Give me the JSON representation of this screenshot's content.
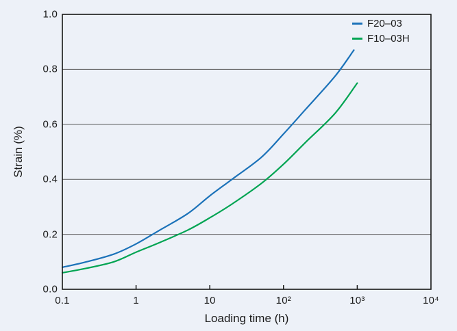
{
  "colors": {
    "background": "#edf1f8",
    "axis": "#161616",
    "gridline": "#555555",
    "text": "#1a1a1a",
    "series_blue": "#1b72b9",
    "series_green": "#00a452"
  },
  "chart_data": {
    "type": "line",
    "title": "",
    "xlabel": "Loading time (h)",
    "ylabel": "Strain (%)",
    "x_scale": "log",
    "xlim": [
      0.1,
      10000
    ],
    "ylim": [
      0.0,
      1.0
    ],
    "grid": "horizontal-only",
    "gridlines_y": [
      0.2,
      0.4,
      0.6,
      0.8
    ],
    "legend_position": "top-right-inside",
    "x_ticks": [
      {
        "v": 0.1,
        "label": "0.1"
      },
      {
        "v": 1,
        "label": "1"
      },
      {
        "v": 10,
        "label": "10"
      },
      {
        "v": 100,
        "label": "10²"
      },
      {
        "v": 1000,
        "label": "10³"
      },
      {
        "v": 10000,
        "label": "10⁴"
      }
    ],
    "y_ticks": [
      {
        "v": 0.0,
        "label": "0.0"
      },
      {
        "v": 0.2,
        "label": "0.2"
      },
      {
        "v": 0.4,
        "label": "0.4"
      },
      {
        "v": 0.6,
        "label": "0.6"
      },
      {
        "v": 0.8,
        "label": "0.8"
      },
      {
        "v": 1.0,
        "label": "1.0"
      }
    ],
    "series": [
      {
        "name": "F20–03",
        "color": "#1b72b9",
        "points": [
          [
            0.1,
            0.08
          ],
          [
            0.2,
            0.098
          ],
          [
            0.5,
            0.128
          ],
          [
            1,
            0.165
          ],
          [
            2,
            0.212
          ],
          [
            5,
            0.275
          ],
          [
            10,
            0.34
          ],
          [
            20,
            0.4
          ],
          [
            50,
            0.48
          ],
          [
            100,
            0.565
          ],
          [
            200,
            0.655
          ],
          [
            500,
            0.775
          ],
          [
            900,
            0.87
          ]
        ]
      },
      {
        "name": "F10–03H",
        "color": "#00a452",
        "points": [
          [
            0.1,
            0.06
          ],
          [
            0.2,
            0.075
          ],
          [
            0.5,
            0.1
          ],
          [
            1,
            0.135
          ],
          [
            2,
            0.168
          ],
          [
            5,
            0.215
          ],
          [
            10,
            0.26
          ],
          [
            20,
            0.31
          ],
          [
            50,
            0.385
          ],
          [
            100,
            0.455
          ],
          [
            200,
            0.535
          ],
          [
            500,
            0.64
          ],
          [
            1000,
            0.75
          ]
        ]
      }
    ]
  }
}
